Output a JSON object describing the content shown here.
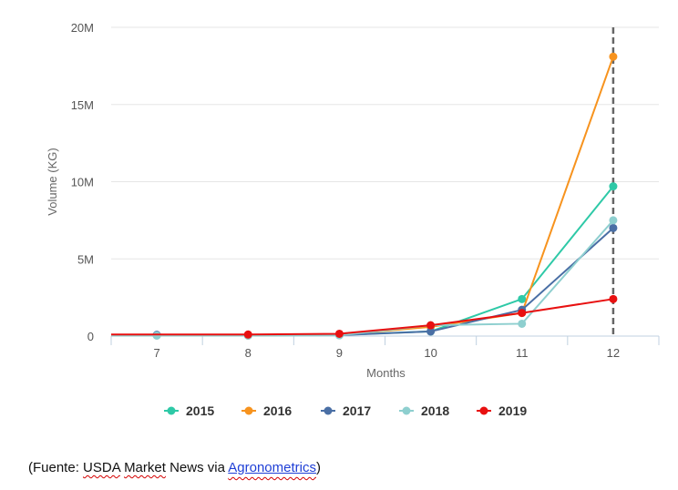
{
  "chart_data": {
    "type": "line",
    "title": "",
    "xlabel": "Months",
    "ylabel": "Volume (KG)",
    "x": [
      7,
      8,
      9,
      10,
      11,
      12
    ],
    "x_tick_labels": [
      "7",
      "8",
      "9",
      "10",
      "11",
      "12"
    ],
    "y_ticks": [
      0,
      5000000,
      10000000,
      15000000,
      20000000
    ],
    "y_tick_labels": [
      "0",
      "5M",
      "10M",
      "15M",
      "20M"
    ],
    "ylim": [
      0,
      20000000
    ],
    "xlim": [
      6.5,
      12.5
    ],
    "grid": true,
    "legend_position": "bottom",
    "crosshair_x": 12,
    "series": [
      {
        "name": "2015",
        "color": "#2ec9a7",
        "values": [
          50000,
          40000,
          80000,
          300000,
          2400000,
          9700000
        ]
      },
      {
        "name": "2016",
        "color": "#f7931e",
        "values": [
          50000,
          40000,
          80000,
          600000,
          1500000,
          18100000
        ]
      },
      {
        "name": "2017",
        "color": "#4a6fa5",
        "values": [
          80000,
          50000,
          60000,
          300000,
          1700000,
          7000000
        ]
      },
      {
        "name": "2018",
        "color": "#8ecfcf",
        "values": [
          30000,
          30000,
          50000,
          700000,
          800000,
          7500000
        ]
      },
      {
        "name": "2019",
        "color": "#e81010",
        "values": [
          null,
          100000,
          150000,
          700000,
          1500000,
          2400000
        ]
      }
    ]
  },
  "source_note": {
    "open": "(Fuente: ",
    "usda": "USDA",
    "space1": " ",
    "market": "Market",
    "rest": " News via ",
    "link": "Agronometrics",
    "close": ")"
  }
}
